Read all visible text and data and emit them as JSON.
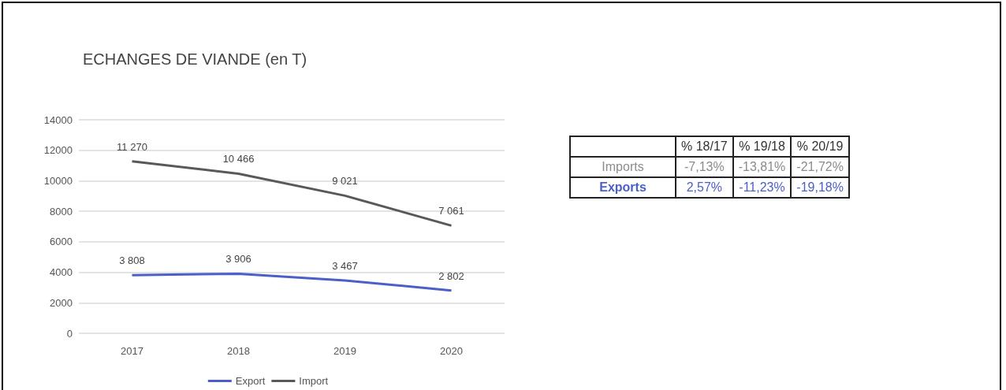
{
  "chart_data": [
    {
      "type": "line",
      "title": "ECHANGES DE VIANDE (en T)",
      "categories": [
        "2017",
        "2018",
        "2019",
        "2020"
      ],
      "series": [
        {
          "name": "Export",
          "color": "#4a5fc8",
          "values": [
            3808,
            3906,
            3467,
            2802
          ],
          "value_labels": [
            "3 808",
            "3 906",
            "3 467",
            "2 802"
          ]
        },
        {
          "name": "Import",
          "color": "#595959",
          "values": [
            11270,
            10466,
            9021,
            7061
          ],
          "value_labels": [
            "11 270",
            "10 466",
            "9 021",
            "7 061"
          ]
        }
      ],
      "ylim": [
        0,
        14000
      ],
      "yticks": [
        0,
        2000,
        4000,
        6000,
        8000,
        10000,
        12000,
        14000
      ],
      "grid": "y",
      "legend": "bottom",
      "marker": "none",
      "line_style": "solid"
    },
    {
      "type": "other",
      "categories": [
        "% 18/17",
        "% 19/18",
        "% 20/19"
      ],
      "y_categories": [
        "Imports",
        "Exports"
      ],
      "cell_labels": [
        [
          "-7,13%",
          "-13,81%",
          "-21,72%"
        ],
        [
          "2,57%",
          "-11,23%",
          "-19,18%"
        ]
      ],
      "colors": [
        "#8c8c8c",
        "#4a5fc8"
      ]
    }
  ]
}
